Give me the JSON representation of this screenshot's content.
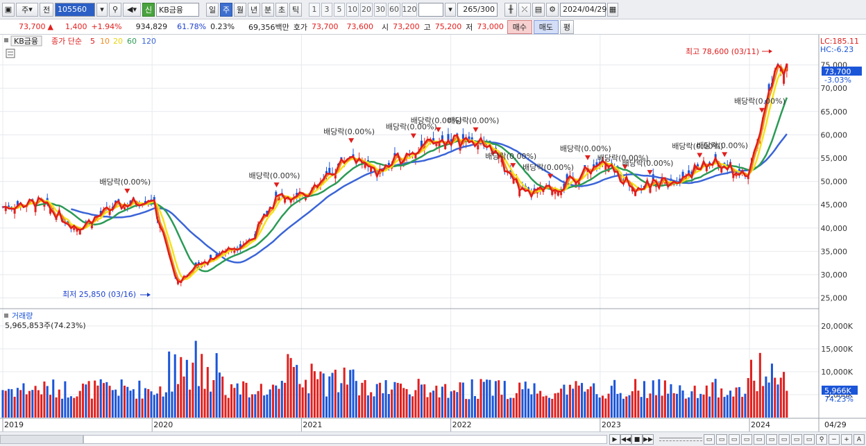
{
  "toolbar": {
    "period_select": "주",
    "prev_label": "전",
    "code": "105560",
    "stock_badge": "신",
    "stock_name": "KB금융",
    "tabs": [
      "일",
      "주",
      "월",
      "년",
      "분",
      "초",
      "틱"
    ],
    "active_tab": "주",
    "intervals": [
      "1",
      "3",
      "5",
      "10",
      "20",
      "30",
      "60",
      "120"
    ],
    "count": "265",
    "count_total": "/300",
    "date": "2024/04/29"
  },
  "quote": {
    "price": "73,700",
    "change_arrow": "▲",
    "change": "1,400",
    "change_pct": "+1.94%",
    "volume": "934,829",
    "volume_ratio": "61.78%",
    "turnover_pct": "0.23%",
    "trade_value": "69,356백만",
    "ask_label": "호가",
    "ask": "73,700",
    "bid": "73,600",
    "open_label": "시",
    "open": "73,200",
    "high_label": "고",
    "high": "75,200",
    "low_label": "저",
    "low": "73,000",
    "buy_button": "매수",
    "sell_button": "매도",
    "eval_button": "평"
  },
  "legend": {
    "stock": "KB금융",
    "ma_label": "종가 단순",
    "ma_periods": [
      "5",
      "10",
      "20",
      "60",
      "120"
    ],
    "volume_title": "거래량",
    "volume_value": "5,965,853주(74.23%)"
  },
  "annotations": {
    "high_label": "최고 78,600 (03/11)",
    "low_label": "최저 25,850 (03/16)",
    "dividend_label": "배당락(0.00%)",
    "lc": "LC:185.11",
    "hc": "HC:-6.23",
    "price_tag": "73,700",
    "price_tag_pct": "-3.03%",
    "vol_tag": "5,966K",
    "vol_tag_pct": "74.23%",
    "date_tag": "04/29"
  },
  "colors": {
    "up": "#e0201e",
    "down": "#1b55d8",
    "ma5": "#e01c1c",
    "ma10": "#f08a1e",
    "ma20": "#f5e21a",
    "ma60": "#2a9a55",
    "ma120": "#3a64d8"
  },
  "chart_data": [
    {
      "type": "candlestick",
      "title": "KB금융",
      "x_range": [
        "2019-01",
        "2024-04"
      ],
      "ylim": [
        23000,
        80000
      ],
      "y_ticks": [
        25000,
        30000,
        35000,
        40000,
        45000,
        50000,
        55000,
        60000,
        65000,
        70000,
        75000
      ],
      "x_ticks": [
        "2019",
        "2020",
        "2021",
        "2022",
        "2023",
        "2024"
      ],
      "close_series": [
        {
          "date": "2019-01",
          "close": 44500
        },
        {
          "date": "2019-04",
          "close": 45500
        },
        {
          "date": "2019-07",
          "close": 40000
        },
        {
          "date": "2019-10",
          "close": 44500
        },
        {
          "date": "2020-01",
          "close": 46500
        },
        {
          "date": "2020-03",
          "close": 28500
        },
        {
          "date": "2020-06",
          "close": 34000
        },
        {
          "date": "2020-09",
          "close": 37500
        },
        {
          "date": "2020-11",
          "close": 46500
        },
        {
          "date": "2021-02",
          "close": 48000
        },
        {
          "date": "2021-05",
          "close": 56000
        },
        {
          "date": "2021-07",
          "close": 51500
        },
        {
          "date": "2021-10",
          "close": 57000
        },
        {
          "date": "2022-01",
          "close": 59000
        },
        {
          "date": "2022-04",
          "close": 58000
        },
        {
          "date": "2022-07",
          "close": 47000
        },
        {
          "date": "2022-10",
          "close": 49000
        },
        {
          "date": "2023-01",
          "close": 54000
        },
        {
          "date": "2023-04",
          "close": 48500
        },
        {
          "date": "2023-07",
          "close": 50500
        },
        {
          "date": "2023-10",
          "close": 54000
        },
        {
          "date": "2024-01",
          "close": 51000
        },
        {
          "date": "2024-03",
          "close": 74000
        },
        {
          "date": "2024-04",
          "close": 73700
        }
      ]
    },
    {
      "type": "bar",
      "title": "거래량",
      "ylim": [
        0,
        23000
      ],
      "y_ticks": [
        "5,000K",
        "10,000K",
        "15,000K",
        "20,000K"
      ],
      "unit": "K"
    }
  ]
}
